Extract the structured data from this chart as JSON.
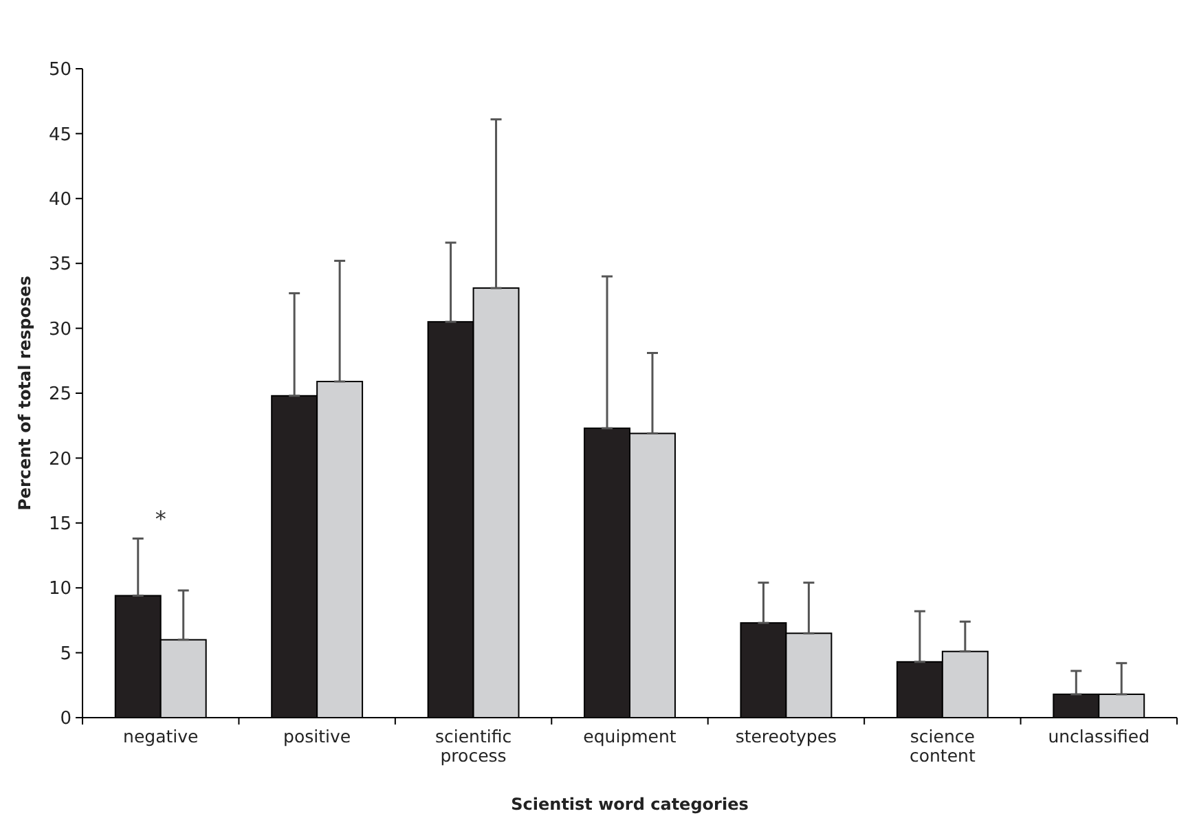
{
  "chart_data": {
    "type": "bar",
    "xlabel": "Scientist word categories",
    "ylabel": "Percent of total resposes",
    "categories": [
      "negative",
      "positive",
      "scientific process",
      "equipment",
      "stereotypes",
      "science content",
      "unclassified"
    ],
    "series": [
      {
        "color": "#231f20",
        "values": [
          9.4,
          24.8,
          30.5,
          22.3,
          7.3,
          4.3,
          1.8
        ],
        "errors": [
          [
            9.4,
            13.8
          ],
          [
            24.8,
            32.7
          ],
          [
            30.5,
            36.6
          ],
          [
            22.3,
            34.0
          ],
          [
            7.3,
            10.4
          ],
          [
            4.3,
            8.2
          ],
          [
            1.8,
            3.6
          ]
        ]
      },
      {
        "color": "#d0d1d3",
        "values": [
          6.0,
          25.9,
          33.1,
          21.9,
          6.5,
          5.1,
          1.8
        ],
        "errors": [
          [
            6.0,
            9.8
          ],
          [
            25.9,
            35.2
          ],
          [
            33.1,
            46.1
          ],
          [
            21.9,
            28.1
          ],
          [
            6.5,
            10.4
          ],
          [
            5.1,
            7.4
          ],
          [
            1.8,
            4.2
          ]
        ]
      }
    ],
    "ylim": [
      0,
      50
    ],
    "yticks": [
      0,
      5,
      10,
      15,
      20,
      25,
      30,
      35,
      40,
      45,
      50
    ],
    "grid": false,
    "annotations": [
      "*"
    ]
  }
}
